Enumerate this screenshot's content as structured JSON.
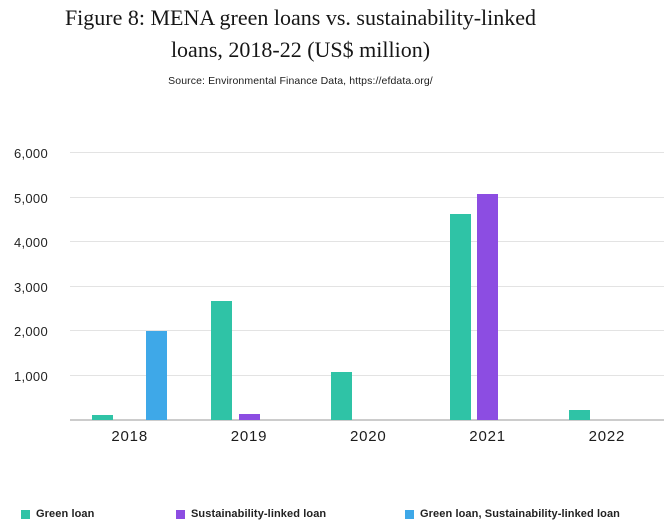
{
  "header": {
    "title": "Figure 8: MENA green loans vs. sustainability-linked loans, 2018-22 (US$ million)",
    "title_lines": [
      "Figure 8: MENA green loans vs. sustainability-linked",
      "loans, 2018-22 (US$ million)"
    ],
    "source": "Source: Environmental Finance Data, https://efdata.org/"
  },
  "colors": {
    "green_loan": "#2fc3a6",
    "sustainability_linked_loan": "#8c4de2",
    "green_and_sustainability_linked_loan": "#3ea8e8",
    "gridline": "#e3e3e3",
    "axis_line": "#cccccc",
    "text": "#1f1f1f"
  },
  "chart_data": {
    "type": "bar",
    "title": "Figure 8: MENA green loans vs. sustainability-linked loans, 2018-22 (US$ million)",
    "source": "Source: Environmental Finance Data, https://efdata.org/",
    "categories": [
      "2018",
      "2019",
      "2020",
      "2021",
      "2022"
    ],
    "series": [
      {
        "name": "Green loan",
        "color": "#2fc3a6",
        "values": [
          120,
          2680,
          1090,
          4620,
          215
        ]
      },
      {
        "name": "Sustainability-linked loan",
        "color": "#8c4de2",
        "values": [
          null,
          130,
          null,
          5070,
          null
        ]
      },
      {
        "name": "Green loan, Sustainability-linked loan",
        "color": "#3ea8e8",
        "values": [
          2000,
          null,
          null,
          null,
          null
        ]
      }
    ],
    "xlabel": "",
    "ylabel": "",
    "ylim": [
      0,
      6000
    ],
    "ytick_interval": 1000,
    "yticks": [
      1000,
      2000,
      3000,
      4000,
      5000,
      6000
    ],
    "ytick_labels": [
      "1,000",
      "2,000",
      "3,000",
      "4,000",
      "5,000",
      "6,000"
    ],
    "grid": true,
    "legend_position": "bottom"
  },
  "legend": {
    "items": [
      {
        "label": "Green loan",
        "color": "#2fc3a6"
      },
      {
        "label": "Sustainability-linked loan",
        "color": "#8c4de2"
      },
      {
        "label": "Green loan, Sustainability-linked loan",
        "color": "#3ea8e8"
      }
    ]
  }
}
